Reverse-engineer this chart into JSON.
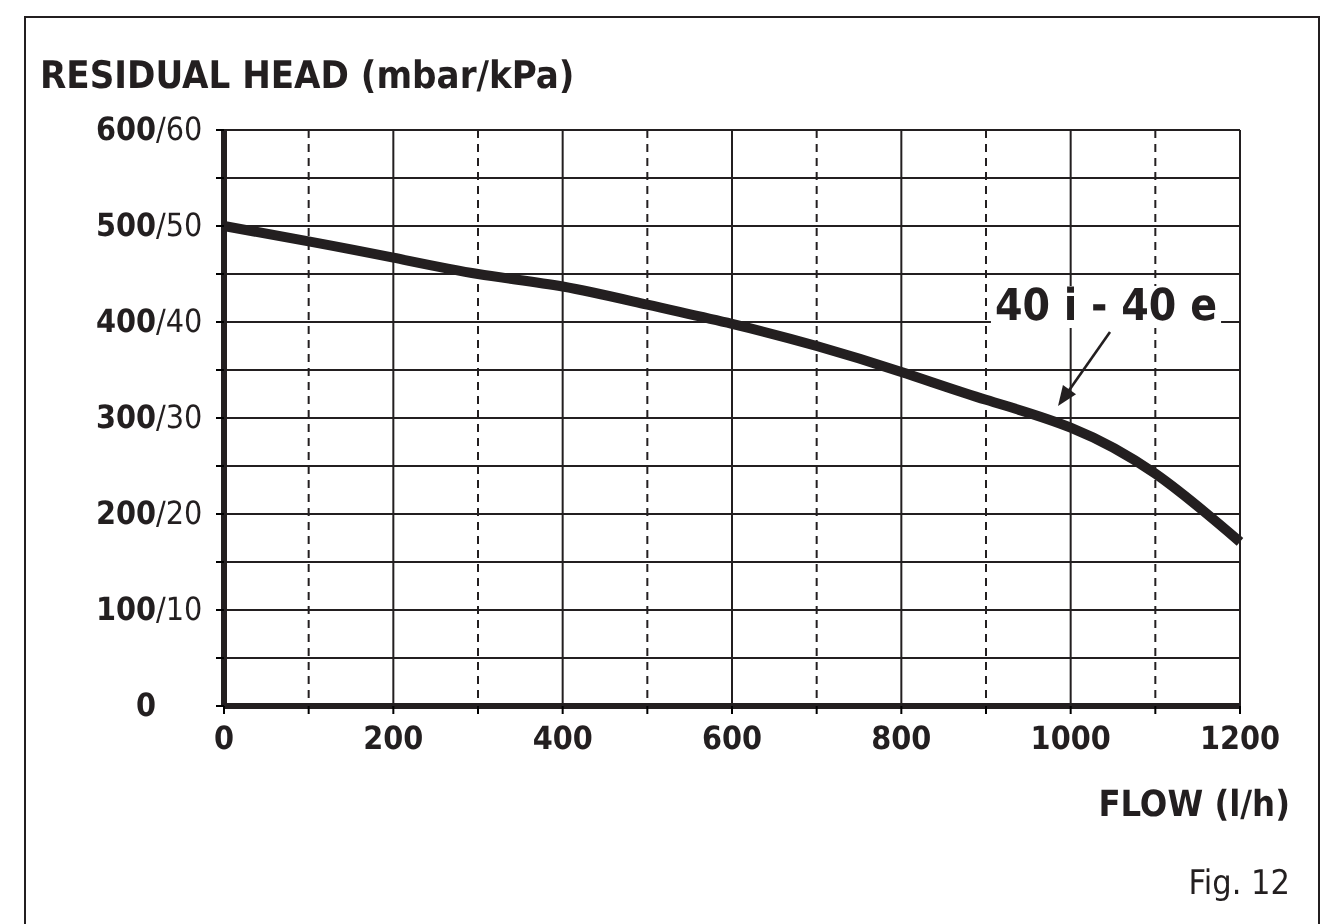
{
  "chart_data": {
    "type": "line",
    "title": "RESIDUAL HEAD (mbar/kPa)",
    "xlabel": "FLOW (l/h)",
    "x": [
      0,
      100,
      200,
      300,
      400,
      500,
      600,
      700,
      800,
      900,
      1000,
      1100,
      1200
    ],
    "series": [
      {
        "color": "#231f20",
        "values": [
          500,
          484,
          467,
          450,
          437,
          418,
          398,
          375,
          348,
          319,
          290,
          242,
          171
        ]
      }
    ],
    "xlim": [
      0,
      1200
    ],
    "xticks": [
      0,
      {
        "value": 100,
        "label": null
      },
      200,
      {
        "value": 300,
        "label": null
      },
      400,
      {
        "value": 500,
        "label": null
      },
      600,
      {
        "value": 700,
        "label": null
      },
      800,
      {
        "value": 900,
        "label": null
      },
      1000,
      {
        "value": 1100,
        "label": null
      },
      1200
    ],
    "ylim": [
      0,
      600
    ],
    "yticks": [
      0,
      {
        "value": 50,
        "label": null
      },
      100,
      {
        "value": 150,
        "label": null
      },
      200,
      {
        "value": 250,
        "label": null
      },
      300,
      {
        "value": 350,
        "label": null
      },
      400,
      {
        "value": 450,
        "label": null
      },
      500,
      {
        "value": 550,
        "label": null
      },
      600
    ],
    "y2lim": [
      0,
      60
    ],
    "y2ticks": [
      {
        "value": 10,
        "label": "/10"
      },
      {
        "value": 20,
        "label": "/20"
      },
      {
        "value": 30,
        "label": "/30"
      },
      {
        "value": 40,
        "label": "/40"
      },
      {
        "value": 50,
        "label": "/50"
      },
      {
        "value": 60,
        "label": "/60"
      }
    ],
    "grid": true,
    "marker": "none",
    "line_style": "solid",
    "annotations": [
      "40 i - 40 e",
      "Fig. 12"
    ]
  }
}
